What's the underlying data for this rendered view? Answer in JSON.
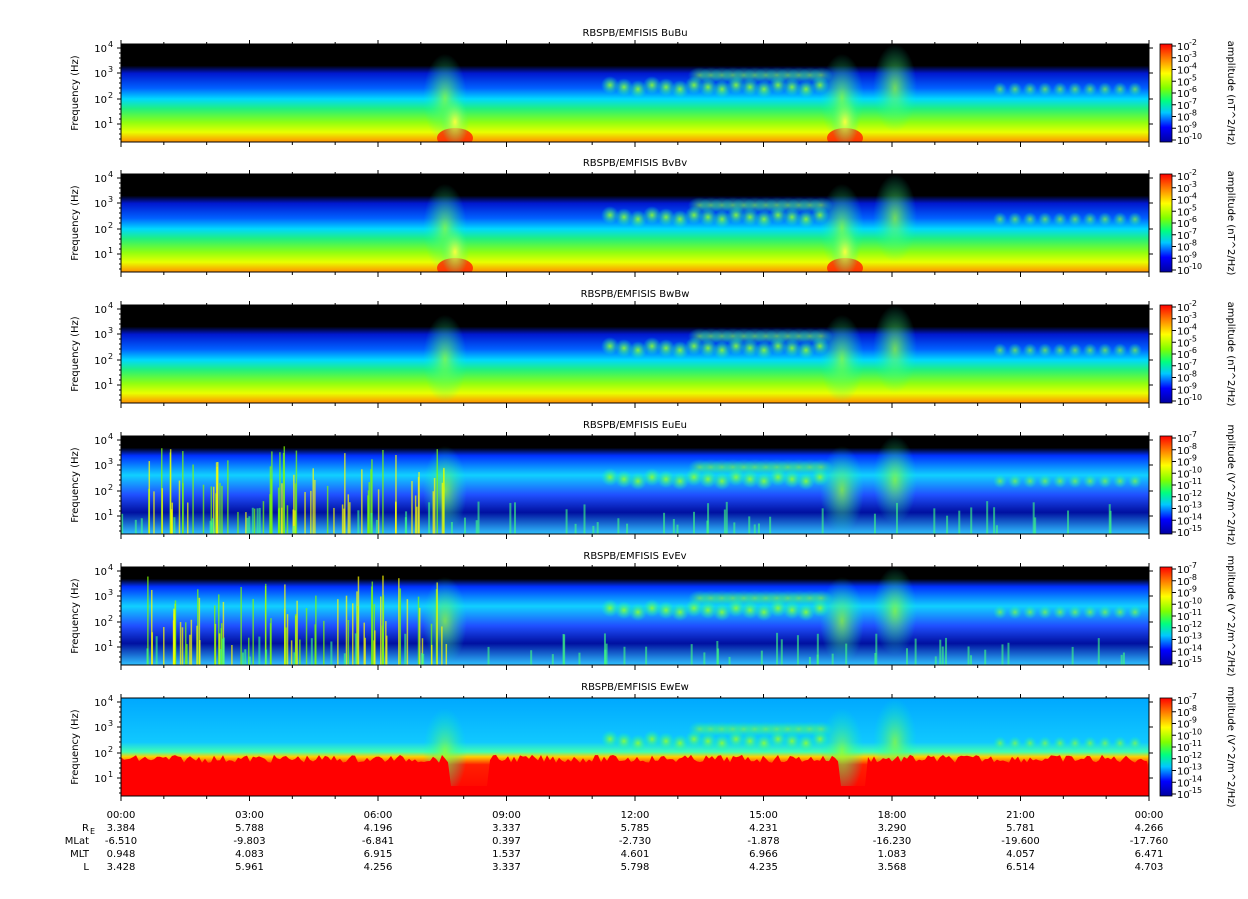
{
  "chart_data": {
    "type": "heatmap",
    "panels": [
      {
        "title": "RBSPB/EMFISIS  BuBu",
        "ylabel": "Frequency (Hz)",
        "cbar_label": "amplitude (nT^2/Hz)",
        "cbar_exps": [
          -2,
          -3,
          -4,
          -5,
          -6,
          -7,
          -8,
          -9,
          -10
        ],
        "yticks": [
          "4",
          "3",
          "2",
          "1"
        ]
      },
      {
        "title": "RBSPB/EMFISIS  BvBv",
        "ylabel": "Frequency (Hz)",
        "cbar_label": "amplitude (nT^2/Hz)",
        "cbar_exps": [
          -2,
          -3,
          -4,
          -5,
          -6,
          -7,
          -8,
          -9,
          -10
        ],
        "yticks": [
          "4",
          "3",
          "2",
          "1"
        ]
      },
      {
        "title": "RBSPB/EMFISIS  BwBw",
        "ylabel": "Frequency (Hz)",
        "cbar_label": "amplitude (nT^2/Hz)",
        "cbar_exps": [
          -2,
          -3,
          -4,
          -5,
          -6,
          -7,
          -8,
          -9,
          -10
        ],
        "yticks": [
          "4",
          "3",
          "2",
          "1"
        ]
      },
      {
        "title": "RBSPB/EMFISIS  EuEu",
        "ylabel": "Frequency (Hz)",
        "cbar_label": "mplitude (V^2/m^2/Hz)",
        "cbar_exps": [
          -7,
          -8,
          -9,
          -10,
          -11,
          -12,
          -13,
          -14,
          -15
        ],
        "yticks": [
          "4",
          "3",
          "2",
          "1"
        ]
      },
      {
        "title": "RBSPB/EMFISIS  EvEv",
        "ylabel": "Frequency (Hz)",
        "cbar_label": "mplitude (V^2/m^2/Hz)",
        "cbar_exps": [
          -7,
          -8,
          -9,
          -10,
          -11,
          -12,
          -13,
          -14,
          -15
        ],
        "yticks": [
          "4",
          "3",
          "2",
          "1"
        ]
      },
      {
        "title": "RBSPB/EMFISIS  EwEw",
        "ylabel": "Frequency (Hz)",
        "cbar_label": "mplitude (V^2/m^2/Hz)",
        "cbar_exps": [
          -7,
          -8,
          -9,
          -10,
          -11,
          -12,
          -13,
          -14,
          -15
        ],
        "yticks": [
          "4",
          "3",
          "2",
          "1"
        ]
      }
    ],
    "x_ticks": [
      "00:00",
      "03:00",
      "06:00",
      "09:00",
      "12:00",
      "15:00",
      "18:00",
      "21:00",
      "00:00"
    ],
    "tick_base": "10",
    "ephemeris": [
      {
        "label": "R",
        "sub": "E",
        "values": [
          "3.384",
          "5.788",
          "4.196",
          "3.337",
          "5.785",
          "4.231",
          "3.290",
          "5.781",
          "4.266"
        ]
      },
      {
        "label": "MLat",
        "sub": "",
        "values": [
          "-6.510",
          "-9.803",
          "-6.841",
          "0.397",
          "-2.730",
          "-1.878",
          "-16.230",
          "-19.600",
          "-17.760"
        ]
      },
      {
        "label": "MLT",
        "sub": "",
        "values": [
          "0.948",
          "4.083",
          "6.915",
          "1.537",
          "4.601",
          "6.966",
          "1.083",
          "4.057",
          "6.471"
        ]
      },
      {
        "label": "L",
        "sub": "",
        "values": [
          "3.428",
          "5.961",
          "4.256",
          "3.337",
          "5.798",
          "4.235",
          "3.568",
          "6.514",
          "4.703"
        ]
      }
    ],
    "colorscale": [
      "#0000a0",
      "#0000ff",
      "#00c8ff",
      "#00ff80",
      "#80ff00",
      "#ffff00",
      "#ff8000",
      "#ff0000"
    ]
  }
}
